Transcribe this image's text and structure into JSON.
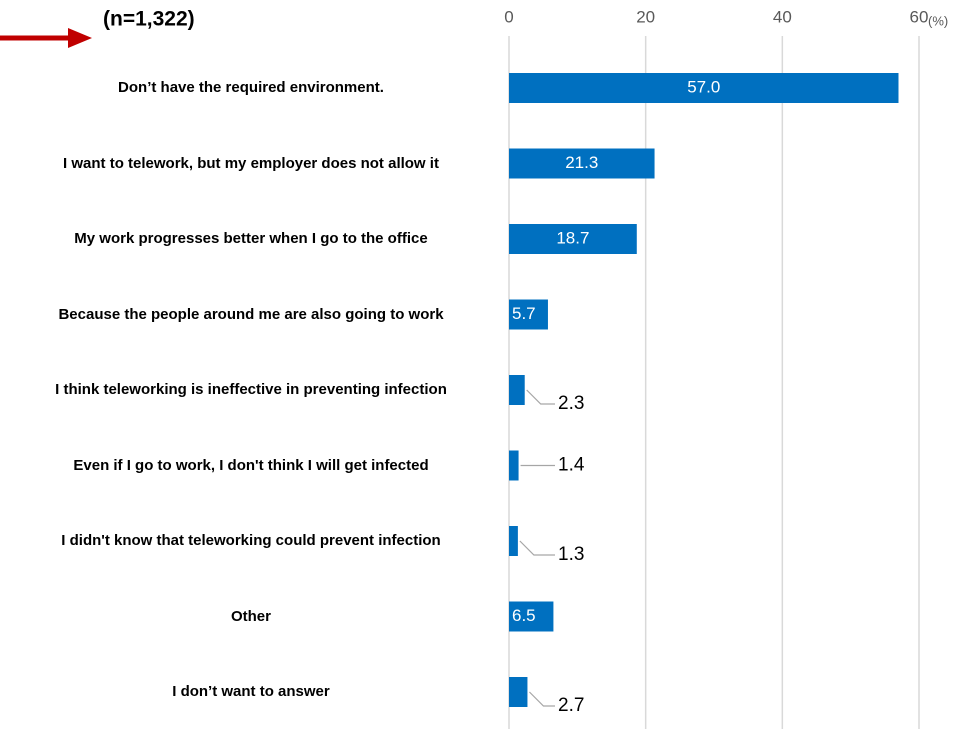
{
  "chart_data": {
    "type": "bar",
    "orientation": "horizontal",
    "subtitle": "(n=1,322)",
    "unit": "(%)",
    "categories": [
      "Don’t have the required environment.",
      "I want to telework, but my employer does not allow it",
      "My work progresses better when I go to the office",
      "Because the people around me are also going to work",
      "I think teleworking is ineffective in preventing infection",
      "Even if I go to work, I don't think I will get infected",
      "I didn't know that teleworking could prevent infection",
      "Other",
      "I don’t want to answer"
    ],
    "values": [
      57.0,
      21.3,
      18.7,
      5.7,
      2.3,
      1.4,
      1.3,
      6.5,
      2.7
    ],
    "value_labels": [
      "57.0",
      "21.3",
      "18.7",
      "5.7",
      "2.3",
      "1.4",
      "1.3",
      "6.5",
      "2.7"
    ],
    "color": "#0070c0",
    "xlim": [
      0,
      60
    ],
    "xticks": [
      0,
      20,
      40,
      60
    ],
    "grid": true
  }
}
